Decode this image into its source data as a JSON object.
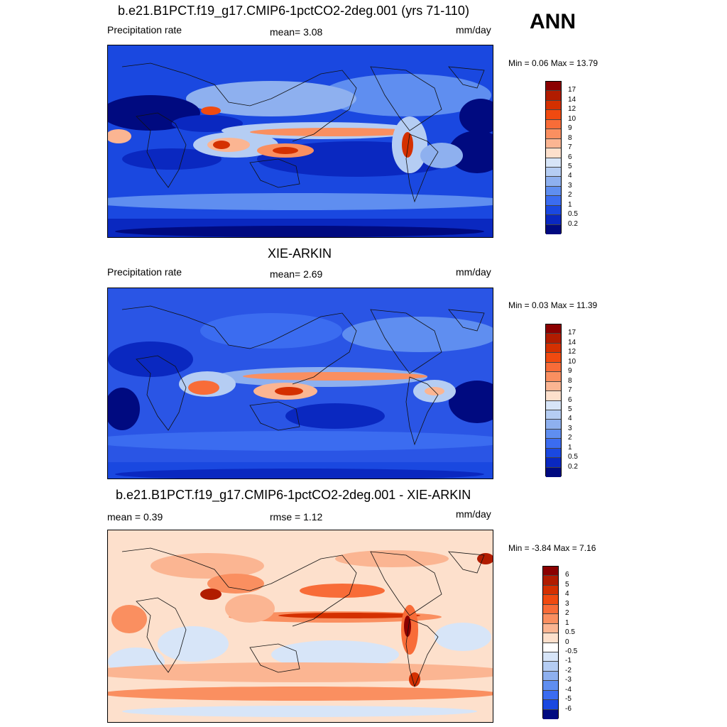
{
  "season": "ANN",
  "panels": [
    {
      "title": "b.e21.B1PCT.f19_g17.CMIP6-1pctCO2-2deg.001 (yrs 71-110)",
      "left_label": "Precipitation rate",
      "center_label": "mean=   3.08",
      "units": "mm/day",
      "minmax": "Min =   0.06 Max =  13.79",
      "legend_labels": [
        "17",
        "14",
        "12",
        "10",
        "9",
        "8",
        "7",
        "6",
        "5",
        "4",
        "3",
        "2",
        "1",
        "0.5",
        "0.2"
      ],
      "legend_colors": [
        "#8b0000",
        "#b11c00",
        "#d43000",
        "#f04a10",
        "#f86c38",
        "#fa8f60",
        "#fbb592",
        "#fde0cc",
        "#d7e5f8",
        "#b5cdf3",
        "#8eb0ef",
        "#5f8ef0",
        "#3b6cf0",
        "#1a48e0",
        "#0a28c0",
        "#000a80"
      ]
    },
    {
      "title": "XIE-ARKIN",
      "left_label": "Precipitation rate",
      "center_label": "mean=   2.69",
      "units": "mm/day",
      "minmax": "Min =   0.03 Max =  11.39",
      "legend_labels": [
        "17",
        "14",
        "12",
        "10",
        "9",
        "8",
        "7",
        "6",
        "5",
        "4",
        "3",
        "2",
        "1",
        "0.5",
        "0.2"
      ],
      "legend_colors": [
        "#8b0000",
        "#b11c00",
        "#d43000",
        "#f04a10",
        "#f86c38",
        "#fa8f60",
        "#fbb592",
        "#fde0cc",
        "#d7e5f8",
        "#b5cdf3",
        "#8eb0ef",
        "#5f8ef0",
        "#3b6cf0",
        "#1a48e0",
        "#0a28c0",
        "#000a80"
      ]
    },
    {
      "title": "b.e21.B1PCT.f19_g17.CMIP6-1pctCO2-2deg.001 - XIE-ARKIN",
      "left_label": "mean =   0.39",
      "center_label": "rmse =   1.12",
      "units": "mm/day",
      "minmax": "Min =  -3.84 Max =   7.16",
      "legend_labels": [
        "6",
        "5",
        "4",
        "3",
        "2",
        "1",
        "0.5",
        "0",
        "-0.5",
        "-1",
        "-2",
        "-3",
        "-4",
        "-5",
        "-6"
      ],
      "legend_colors": [
        "#8b0000",
        "#b11c00",
        "#d43000",
        "#f04a10",
        "#f86c38",
        "#fa8f60",
        "#fbb592",
        "#fde0cc",
        "#ffffff",
        "#d7e5f8",
        "#b5cdf3",
        "#8eb0ef",
        "#5f8ef0",
        "#3b6cf0",
        "#1a48e0",
        "#000a80"
      ]
    }
  ],
  "fields": {
    "model_base": "#1a48e0",
    "obs_base": "#2a55e5",
    "diff_base": "#fde0cc"
  }
}
